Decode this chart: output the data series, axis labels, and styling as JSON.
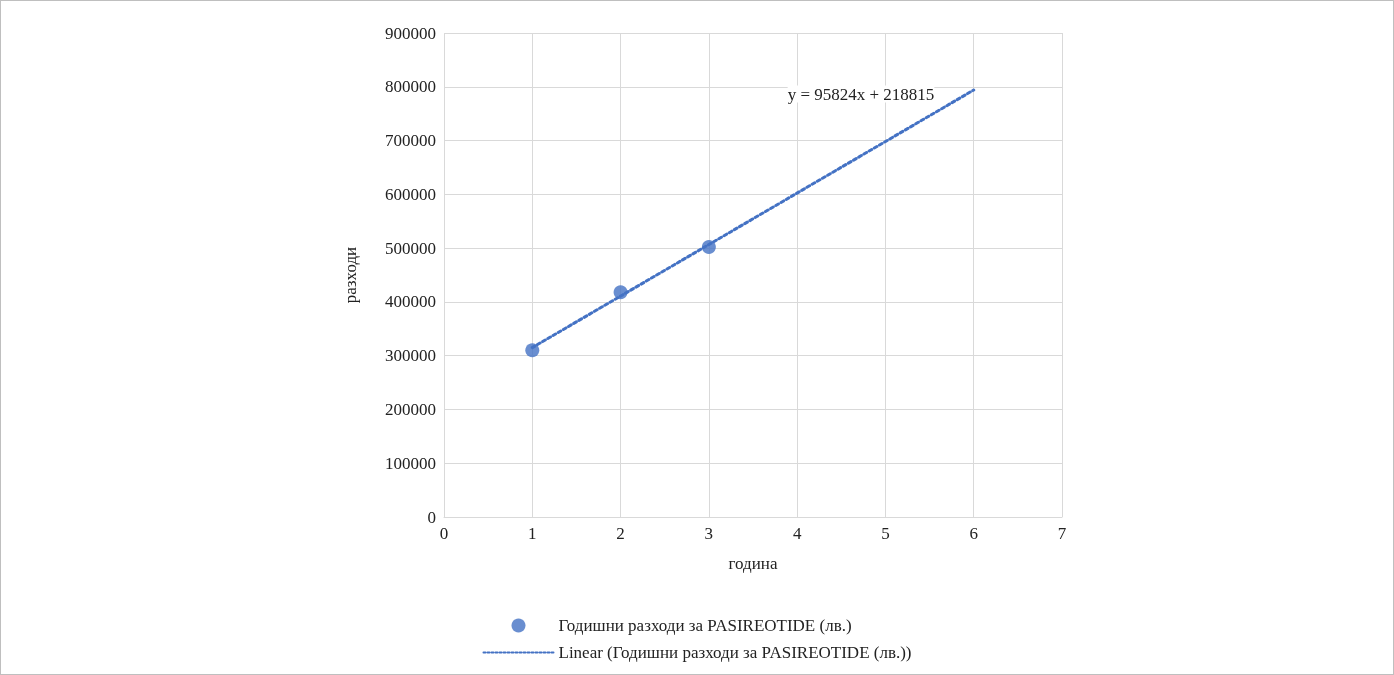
{
  "chart_data": {
    "type": "scatter",
    "xlabel": "година",
    "ylabel": "разходи",
    "xlim": [
      0,
      7
    ],
    "xticks": [
      0,
      1,
      2,
      3,
      4,
      5,
      6,
      7
    ],
    "ylim": [
      0,
      900000
    ],
    "yticks": [
      0,
      100000,
      200000,
      300000,
      400000,
      500000,
      600000,
      700000,
      800000,
      900000
    ],
    "grid": true,
    "legend": "bottom",
    "annotations": [
      "y = 95824x + 218815"
    ],
    "series": [
      {
        "name": "Годишни разходи за PASIREOTIDE (лв.)",
        "color": "#4472c4",
        "marker": "circle",
        "x": [
          1,
          2,
          3
        ],
        "values": [
          310000,
          418000,
          502000
        ]
      },
      {
        "name": "Linear (Годишни разходи за PASIREOTIDE (лв.))",
        "type": "line",
        "color": "#4472c4",
        "marker": "none",
        "line_style": "dotted",
        "x": [
          1,
          6
        ],
        "values": [
          315000,
          794000
        ]
      }
    ]
  }
}
